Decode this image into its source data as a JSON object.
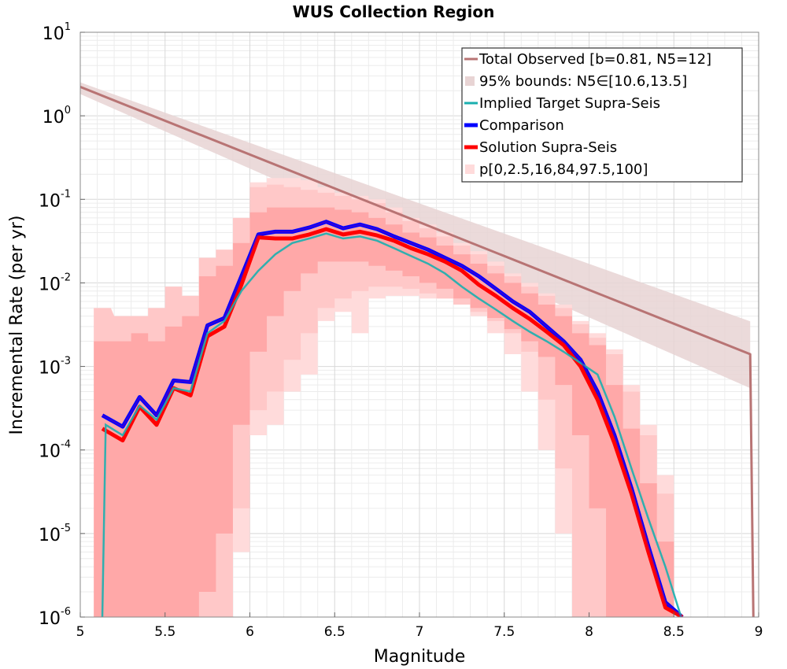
{
  "chart_data": {
    "type": "line",
    "title": "WUS Collection Region",
    "xlabel": "Magnitude",
    "ylabel": "Incremental Rate (per yr)",
    "xlim": [
      5,
      9
    ],
    "ylim_log10": [
      -6,
      1
    ],
    "y_scale": "log",
    "x_ticks": [
      5,
      5.5,
      6,
      6.5,
      7,
      7.5,
      8,
      8.5,
      9
    ],
    "x_tick_labels": [
      "5",
      "5.5",
      "6",
      "6.5",
      "7",
      "7.5",
      "8",
      "8.5",
      "9"
    ],
    "y_tick_exponents": [
      "1",
      "0",
      "-1",
      "-2",
      "-3",
      "-4",
      "-5",
      "-6"
    ],
    "y_tick_base": "10",
    "grid": true,
    "legend_position": "top-right",
    "colors": {
      "total_observed": "#b87474",
      "bounds95": "#e8d4d4",
      "implied_target": "#1aafaf",
      "comparison": "#0000ff",
      "solution": "#ff0000",
      "pband_outer": "#ffdbdb",
      "pband_mid": "#ffc8c8",
      "pband_inner": "#ffa8a8"
    },
    "legend": [
      {
        "key": "total_observed",
        "label": "Total Observed [b=0.81, N5=12]",
        "style": "line"
      },
      {
        "key": "bounds95",
        "label": "95% bounds: N5∈[10.6,13.5]",
        "style": "band"
      },
      {
        "key": "implied_target",
        "label": "Implied Target Supra-Seis",
        "style": "line"
      },
      {
        "key": "comparison",
        "label": "Comparison",
        "style": "thick"
      },
      {
        "key": "solution",
        "label": "Solution Supra-Seis",
        "style": "thick"
      },
      {
        "key": "pband_outer",
        "label": "p[0,2.5,16,84,97.5,100]",
        "style": "band"
      }
    ],
    "series": [
      {
        "name": "Total Observed [b=0.81, N5=12]",
        "key": "total_observed",
        "x": [
          5.0,
          8.95,
          8.95,
          8.97
        ],
        "y_log10": [
          0.346,
          -2.853,
          -2.853,
          -6.2
        ]
      },
      {
        "name": "95% bounds: N5∈[10.6,13.5]",
        "key": "bounds95",
        "x": [
          5.0,
          8.95
        ],
        "lower_log10": [
          0.26,
          -3.26
        ],
        "upper_log10": [
          0.4,
          -2.46
        ]
      },
      {
        "name": "Implied Target Supra-Seis",
        "key": "implied_target",
        "x": [
          5.13,
          5.15,
          5.25,
          5.35,
          5.45,
          5.55,
          5.65,
          5.75,
          5.85,
          5.95,
          6.05,
          6.15,
          6.25,
          6.35,
          6.45,
          6.55,
          6.65,
          6.75,
          6.85,
          6.95,
          7.05,
          7.15,
          7.25,
          7.35,
          7.45,
          7.55,
          7.65,
          7.75,
          7.85,
          7.95,
          8.05,
          8.15,
          8.25,
          8.35,
          8.45,
          8.55,
          8.56
        ],
        "y": [
          1e-06,
          0.0002,
          0.00015,
          0.00034,
          0.00023,
          0.00055,
          0.0005,
          0.0025,
          0.0035,
          0.008,
          0.014,
          0.022,
          0.03,
          0.034,
          0.039,
          0.034,
          0.036,
          0.032,
          0.026,
          0.021,
          0.017,
          0.013,
          0.009,
          0.0065,
          0.0048,
          0.0035,
          0.0026,
          0.002,
          0.0015,
          0.0011,
          0.0008,
          0.00025,
          6e-05,
          1.5e-05,
          4e-06,
          9e-07,
          1e-06
        ]
      },
      {
        "name": "Comparison",
        "key": "comparison",
        "x": [
          5.13,
          5.25,
          5.35,
          5.45,
          5.55,
          5.65,
          5.75,
          5.85,
          5.95,
          6.05,
          6.15,
          6.25,
          6.35,
          6.45,
          6.55,
          6.65,
          6.75,
          6.85,
          6.95,
          7.05,
          7.15,
          7.25,
          7.35,
          7.45,
          7.55,
          7.65,
          7.75,
          7.85,
          7.95,
          8.05,
          8.15,
          8.25,
          8.35,
          8.45,
          8.55
        ],
        "y": [
          0.00026,
          0.00019,
          0.00043,
          0.00026,
          0.00068,
          0.00065,
          0.0031,
          0.0038,
          0.012,
          0.038,
          0.041,
          0.041,
          0.046,
          0.054,
          0.045,
          0.05,
          0.044,
          0.036,
          0.03,
          0.025,
          0.02,
          0.016,
          0.012,
          0.0085,
          0.006,
          0.0045,
          0.003,
          0.002,
          0.0012,
          0.0005,
          0.00015,
          3.5e-05,
          7e-06,
          1.5e-06,
          1e-06
        ]
      },
      {
        "name": "Solution Supra-Seis",
        "key": "solution",
        "x": [
          5.13,
          5.25,
          5.35,
          5.45,
          5.55,
          5.65,
          5.75,
          5.85,
          5.95,
          6.05,
          6.15,
          6.25,
          6.35,
          6.45,
          6.55,
          6.65,
          6.75,
          6.85,
          6.95,
          7.05,
          7.15,
          7.25,
          7.35,
          7.45,
          7.55,
          7.65,
          7.75,
          7.85,
          7.95,
          8.05,
          8.15,
          8.25,
          8.35,
          8.45,
          8.55
        ],
        "y": [
          0.00018,
          0.00013,
          0.00033,
          0.0002,
          0.00055,
          0.00045,
          0.0023,
          0.003,
          0.0095,
          0.035,
          0.034,
          0.034,
          0.038,
          0.044,
          0.038,
          0.041,
          0.037,
          0.032,
          0.026,
          0.022,
          0.018,
          0.014,
          0.0095,
          0.007,
          0.005,
          0.0037,
          0.0026,
          0.0018,
          0.001,
          0.0004,
          0.00012,
          3e-05,
          6e-06,
          1.3e-06,
          1e-06
        ]
      }
    ],
    "percentile_bands": {
      "x": [
        5.13,
        5.25,
        5.35,
        5.45,
        5.55,
        5.65,
        5.75,
        5.85,
        5.95,
        6.05,
        6.15,
        6.25,
        6.35,
        6.45,
        6.55,
        6.65,
        6.75,
        6.85,
        6.95,
        7.05,
        7.15,
        7.25,
        7.35,
        7.45,
        7.55,
        7.65,
        7.75,
        7.85,
        7.95,
        8.05,
        8.15,
        8.25,
        8.35,
        8.45,
        8.55
      ],
      "p0": [
        1e-06,
        1e-06,
        1e-06,
        1e-06,
        1e-06,
        1e-06,
        1e-06,
        1e-06,
        6e-06,
        0.00015,
        0.0002,
        0.0005,
        0.0008,
        0.0035,
        0.0045,
        0.0025,
        0.0065,
        0.007,
        0.007,
        0.0065,
        0.0065,
        0.0055,
        0.004,
        0.0025,
        0.0014,
        0.0005,
        0.0001,
        1e-05,
        1e-06,
        1e-06,
        1e-06,
        1e-06,
        1e-06,
        1e-06,
        1e-06
      ],
      "p2_5": [
        1e-06,
        1e-06,
        1e-06,
        1e-06,
        1e-06,
        1e-06,
        1e-06,
        1e-06,
        2e-05,
        0.0003,
        0.0005,
        0.0012,
        0.0025,
        0.005,
        0.0065,
        0.008,
        0.009,
        0.009,
        0.0085,
        0.0075,
        0.0065,
        0.0055,
        0.0045,
        0.0035,
        0.0025,
        0.0015,
        0.0004,
        6e-05,
        1e-06,
        1e-06,
        1e-06,
        1e-06,
        1e-06,
        1e-06,
        1e-06
      ],
      "p16": [
        1e-06,
        1e-06,
        1e-06,
        1e-06,
        1e-06,
        1e-06,
        2e-06,
        1e-05,
        0.0002,
        0.0015,
        0.004,
        0.008,
        0.013,
        0.018,
        0.018,
        0.018,
        0.016,
        0.014,
        0.012,
        0.01,
        0.0085,
        0.0065,
        0.005,
        0.0038,
        0.0028,
        0.002,
        0.0013,
        0.0006,
        0.00015,
        2e-05,
        1e-06,
        1e-06,
        1e-06,
        1e-06,
        1e-06
      ],
      "p84": [
        0.002,
        0.002,
        0.0025,
        0.002,
        0.003,
        0.004,
        0.012,
        0.016,
        0.03,
        0.07,
        0.08,
        0.08,
        0.08,
        0.08,
        0.075,
        0.07,
        0.06,
        0.05,
        0.04,
        0.035,
        0.028,
        0.022,
        0.017,
        0.013,
        0.01,
        0.0075,
        0.0055,
        0.004,
        0.0025,
        0.0018,
        0.0006,
        0.00018,
        4e-05,
        8e-06,
        1e-06
      ],
      "p97_5": [
        0.005,
        0.004,
        0.004,
        0.005,
        0.009,
        0.007,
        0.02,
        0.025,
        0.06,
        0.14,
        0.15,
        0.14,
        0.13,
        0.12,
        0.11,
        0.1,
        0.09,
        0.07,
        0.055,
        0.045,
        0.036,
        0.028,
        0.022,
        0.016,
        0.012,
        0.009,
        0.007,
        0.005,
        0.0032,
        0.0022,
        0.0014,
        0.0005,
        0.00015,
        3e-05,
        1e-06
      ],
      "p100": [
        0.005,
        0.004,
        0.004,
        0.005,
        0.009,
        0.007,
        0.02,
        0.025,
        0.06,
        0.16,
        0.18,
        0.18,
        0.17,
        0.14,
        0.12,
        0.11,
        0.1,
        0.08,
        0.06,
        0.05,
        0.04,
        0.03,
        0.024,
        0.018,
        0.013,
        0.01,
        0.0075,
        0.0055,
        0.0035,
        0.0025,
        0.0016,
        0.0006,
        0.0002,
        5e-05,
        1e-06
      ]
    }
  }
}
